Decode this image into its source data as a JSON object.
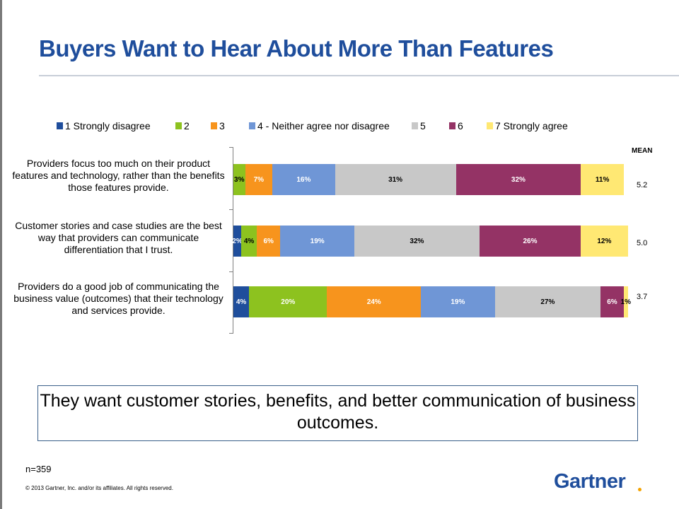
{
  "slide": {
    "title": "Buyers Want to Hear About More Than Features",
    "callout": "They want customer stories, benefits, and better communication of business outcomes.",
    "sample_size": "n=359",
    "copyright": "© 2013 Gartner, Inc. and/or its affiliates. All rights reserved.",
    "logo": "Gartner"
  },
  "chart_data": {
    "type": "bar",
    "orientation": "horizontal",
    "stacked": true,
    "legend_position": "top",
    "mean_header": "MEAN",
    "legend": [
      {
        "label": "1 Strongly disagree",
        "color": "#1f4e9c"
      },
      {
        "label": "2",
        "color": "#8dc21f"
      },
      {
        "label": "3",
        "color": "#f7941d"
      },
      {
        "label": "4 - Neither agree nor disagree",
        "color": "#6f96d6"
      },
      {
        "label": "5",
        "color": "#c8c8c8"
      },
      {
        "label": "6",
        "color": "#943365"
      },
      {
        "label": "7 Strongly agree",
        "color": "#ffe873"
      }
    ],
    "rows": [
      {
        "label": "Providers focus too much on their product features and technology, rather than the benefits those features provide.",
        "values": [
          0,
          3,
          7,
          16,
          31,
          32,
          11
        ],
        "value_labels": [
          "",
          "3%",
          "7%",
          "16%",
          "31%",
          "32%",
          "11%"
        ],
        "mean": "5.2"
      },
      {
        "label": "Customer stories and case studies are the best way that providers can communicate differentiation that I trust.",
        "values": [
          2,
          4,
          6,
          19,
          32,
          26,
          12
        ],
        "value_labels": [
          "2%",
          "4%",
          "6%",
          "19%",
          "32%",
          "26%",
          "12%"
        ],
        "mean": "5.0"
      },
      {
        "label": "Providers do a good job of communicating the business value (outcomes) that their technology and services provide.",
        "values": [
          4,
          20,
          24,
          19,
          27,
          6,
          1
        ],
        "value_labels": [
          "4%",
          "20%",
          "24%",
          "19%",
          "27%",
          "6%",
          "1%"
        ],
        "mean": "3.7"
      }
    ]
  }
}
